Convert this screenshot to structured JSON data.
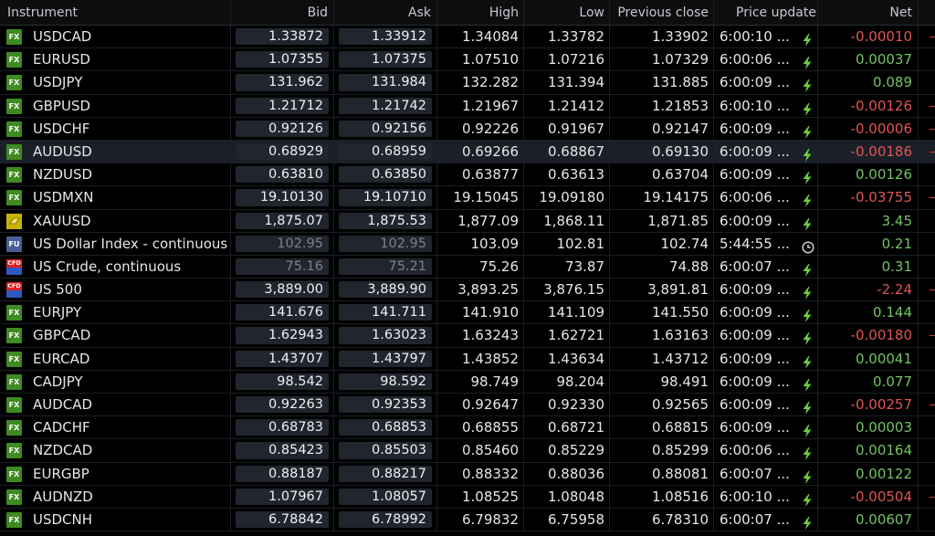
{
  "columns": {
    "instrument": "Instrument",
    "bid": "Bid",
    "ask": "Ask",
    "high": "High",
    "low": "Low",
    "prev": "Previous close",
    "update": "Price update",
    "net": "Net"
  },
  "colors": {
    "positive": "#72c462",
    "negative": "#e05555",
    "fx_badge": "#3f8a22"
  },
  "rows": [
    {
      "type": "FX",
      "badge": "FX",
      "name": "USDCAD",
      "bid": "1.33872",
      "ask": "1.33912",
      "high": "1.34084",
      "low": "1.33782",
      "prev": "1.33902",
      "time": "6:00:10 ...",
      "icon": "bolt-icon",
      "net": "-0.00010",
      "dir": "neg"
    },
    {
      "type": "FX",
      "badge": "FX",
      "name": "EURUSD",
      "bid": "1.07355",
      "ask": "1.07375",
      "high": "1.07510",
      "low": "1.07216",
      "prev": "1.07329",
      "time": "6:00:06 ...",
      "icon": "bolt-icon",
      "net": "0.00037",
      "dir": "pos"
    },
    {
      "type": "FX",
      "badge": "FX",
      "name": "USDJPY",
      "bid": "131.962",
      "ask": "131.984",
      "high": "132.282",
      "low": "131.394",
      "prev": "131.885",
      "time": "6:00:09 ...",
      "icon": "bolt-icon",
      "net": "0.089",
      "dir": "pos"
    },
    {
      "type": "FX",
      "badge": "FX",
      "name": "GBPUSD",
      "bid": "1.21712",
      "ask": "1.21742",
      "high": "1.21967",
      "low": "1.21412",
      "prev": "1.21853",
      "time": "6:00:10 ...",
      "icon": "bolt-icon",
      "net": "-0.00126",
      "dir": "neg"
    },
    {
      "type": "FX",
      "badge": "FX",
      "name": "USDCHF",
      "bid": "0.92126",
      "ask": "0.92156",
      "high": "0.92226",
      "low": "0.91967",
      "prev": "0.92147",
      "time": "6:00:09 ...",
      "icon": "bolt-icon",
      "net": "-0.00006",
      "dir": "neg"
    },
    {
      "type": "FX",
      "badge": "FX",
      "name": "AUDUSD",
      "bid": "0.68929",
      "ask": "0.68959",
      "high": "0.69266",
      "low": "0.68867",
      "prev": "0.69130",
      "time": "6:00:09 ...",
      "icon": "bolt-icon",
      "net": "-0.00186",
      "dir": "neg",
      "selected": true
    },
    {
      "type": "FX",
      "badge": "FX",
      "name": "NZDUSD",
      "bid": "0.63810",
      "ask": "0.63850",
      "high": "0.63877",
      "low": "0.63613",
      "prev": "0.63704",
      "time": "6:00:09 ...",
      "icon": "bolt-icon",
      "net": "0.00126",
      "dir": "pos"
    },
    {
      "type": "FX",
      "badge": "FX",
      "name": "USDMXN",
      "bid": "19.10130",
      "ask": "19.10710",
      "high": "19.15045",
      "low": "19.09180",
      "prev": "19.14175",
      "time": "6:00:06 ...",
      "icon": "bolt-icon",
      "net": "-0.03755",
      "dir": "neg"
    },
    {
      "type": "CMD",
      "badge": "",
      "name": "XAUUSD",
      "bid": "1,875.07",
      "ask": "1,875.53",
      "high": "1,877.09",
      "low": "1,868.11",
      "prev": "1,871.85",
      "time": "6:00:09 ...",
      "icon": "bolt-icon",
      "net": "3.45",
      "dir": "pos"
    },
    {
      "type": "FU",
      "badge": "FU",
      "name": "US Dollar Index - continuous",
      "bid": "102.95",
      "ask": "102.95",
      "high": "103.09",
      "low": "102.81",
      "prev": "102.74",
      "time": "5:44:55 ...",
      "icon": "clock-icon",
      "net": "0.21",
      "dir": "pos",
      "stale": true
    },
    {
      "type": "CFD",
      "badge": "CFD",
      "name": "US Crude, continuous",
      "bid": "75.16",
      "ask": "75.21",
      "high": "75.26",
      "low": "73.87",
      "prev": "74.88",
      "time": "6:00:07 ...",
      "icon": "bolt-icon",
      "net": "0.31",
      "dir": "pos",
      "stale": true
    },
    {
      "type": "CFD",
      "badge": "CFD",
      "name": "US 500",
      "bid": "3,889.00",
      "ask": "3,889.90",
      "high": "3,893.25",
      "low": "3,876.15",
      "prev": "3,891.81",
      "time": "6:00:09 ...",
      "icon": "bolt-icon",
      "net": "-2.24",
      "dir": "neg"
    },
    {
      "type": "FX",
      "badge": "FX",
      "name": "EURJPY",
      "bid": "141.676",
      "ask": "141.711",
      "high": "141.910",
      "low": "141.109",
      "prev": "141.550",
      "time": "6:00:09 ...",
      "icon": "bolt-icon",
      "net": "0.144",
      "dir": "pos"
    },
    {
      "type": "FX",
      "badge": "FX",
      "name": "GBPCAD",
      "bid": "1.62943",
      "ask": "1.63023",
      "high": "1.63243",
      "low": "1.62721",
      "prev": "1.63163",
      "time": "6:00:09 ...",
      "icon": "bolt-icon",
      "net": "-0.00180",
      "dir": "neg"
    },
    {
      "type": "FX",
      "badge": "FX",
      "name": "EURCAD",
      "bid": "1.43707",
      "ask": "1.43797",
      "high": "1.43852",
      "low": "1.43634",
      "prev": "1.43712",
      "time": "6:00:09 ...",
      "icon": "bolt-icon",
      "net": "0.00041",
      "dir": "pos"
    },
    {
      "type": "FX",
      "badge": "FX",
      "name": "CADJPY",
      "bid": "98.542",
      "ask": "98.592",
      "high": "98.749",
      "low": "98.204",
      "prev": "98.491",
      "time": "6:00:09 ...",
      "icon": "bolt-icon",
      "net": "0.077",
      "dir": "pos"
    },
    {
      "type": "FX",
      "badge": "FX",
      "name": "AUDCAD",
      "bid": "0.92263",
      "ask": "0.92353",
      "high": "0.92647",
      "low": "0.92330",
      "prev": "0.92565",
      "time": "6:00:09 ...",
      "icon": "bolt-icon",
      "net": "-0.00257",
      "dir": "neg"
    },
    {
      "type": "FX",
      "badge": "FX",
      "name": "CADCHF",
      "bid": "0.68783",
      "ask": "0.68853",
      "high": "0.68855",
      "low": "0.68721",
      "prev": "0.68815",
      "time": "6:00:09 ...",
      "icon": "bolt-icon",
      "net": "0.00003",
      "dir": "pos"
    },
    {
      "type": "FX",
      "badge": "FX",
      "name": "NZDCAD",
      "bid": "0.85423",
      "ask": "0.85503",
      "high": "0.85460",
      "low": "0.85229",
      "prev": "0.85299",
      "time": "6:00:06 ...",
      "icon": "bolt-icon",
      "net": "0.00164",
      "dir": "pos"
    },
    {
      "type": "FX",
      "badge": "FX",
      "name": "EURGBP",
      "bid": "0.88187",
      "ask": "0.88217",
      "high": "0.88332",
      "low": "0.88036",
      "prev": "0.88081",
      "time": "6:00:07 ...",
      "icon": "bolt-icon",
      "net": "0.00122",
      "dir": "pos"
    },
    {
      "type": "FX",
      "badge": "FX",
      "name": "AUDNZD",
      "bid": "1.07967",
      "ask": "1.08057",
      "high": "1.08525",
      "low": "1.08048",
      "prev": "1.08516",
      "time": "6:00:10 ...",
      "icon": "bolt-icon",
      "net": "-0.00504",
      "dir": "neg"
    },
    {
      "type": "FX",
      "badge": "FX",
      "name": "USDCNH",
      "bid": "6.78842",
      "ask": "6.78992",
      "high": "6.79832",
      "low": "6.75958",
      "prev": "6.78310",
      "time": "6:00:07 ...",
      "icon": "bolt-icon",
      "net": "0.00607",
      "dir": "pos"
    }
  ]
}
